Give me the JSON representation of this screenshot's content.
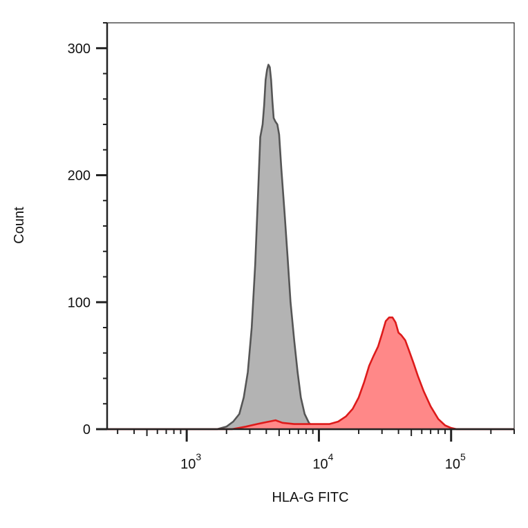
{
  "chart_data": {
    "type": "area",
    "title": "",
    "xlabel": "HLA-G FITC",
    "ylabel": "Count",
    "x_scale": "log",
    "xlim": [
      250,
      300000
    ],
    "ylim": [
      0,
      320
    ],
    "x_major_ticks": [
      {
        "value": 1000,
        "base": "10",
        "exp": "3"
      },
      {
        "value": 10000,
        "base": "10",
        "exp": "4"
      },
      {
        "value": 100000,
        "base": "10",
        "exp": "5"
      }
    ],
    "y_ticks": [
      {
        "value": 0,
        "label": "0"
      },
      {
        "value": 100,
        "label": "100"
      },
      {
        "value": 200,
        "label": "200"
      },
      {
        "value": 300,
        "label": "300"
      }
    ],
    "grid": false,
    "legend": "none",
    "series": [
      {
        "color": "#555555",
        "fill": "#b3b3b3",
        "points": [
          [
            250,
            0
          ],
          [
            1700,
            0
          ],
          [
            2000,
            2
          ],
          [
            2250,
            6
          ],
          [
            2500,
            12
          ],
          [
            2700,
            25
          ],
          [
            2900,
            45
          ],
          [
            3100,
            80
          ],
          [
            3300,
            130
          ],
          [
            3450,
            180
          ],
          [
            3600,
            230
          ],
          [
            3750,
            240
          ],
          [
            3850,
            255
          ],
          [
            3950,
            275
          ],
          [
            4050,
            283
          ],
          [
            4150,
            287
          ],
          [
            4250,
            285
          ],
          [
            4350,
            275
          ],
          [
            4450,
            258
          ],
          [
            4550,
            245
          ],
          [
            4700,
            242
          ],
          [
            4850,
            240
          ],
          [
            5000,
            232
          ],
          [
            5200,
            205
          ],
          [
            5500,
            170
          ],
          [
            5800,
            135
          ],
          [
            6100,
            100
          ],
          [
            6500,
            70
          ],
          [
            6900,
            45
          ],
          [
            7300,
            25
          ],
          [
            7800,
            12
          ],
          [
            8400,
            5
          ],
          [
            9200,
            1
          ],
          [
            10000,
            0
          ],
          [
            300000,
            0
          ]
        ]
      },
      {
        "color": "#dd1a1a",
        "fill": "#ff8888",
        "points": [
          [
            250,
            0
          ],
          [
            2200,
            0
          ],
          [
            2800,
            2
          ],
          [
            3400,
            4
          ],
          [
            4200,
            6
          ],
          [
            4700,
            7
          ],
          [
            5300,
            5
          ],
          [
            6500,
            4
          ],
          [
            9000,
            4
          ],
          [
            12000,
            4
          ],
          [
            14000,
            6
          ],
          [
            16000,
            10
          ],
          [
            18000,
            16
          ],
          [
            20000,
            25
          ],
          [
            22000,
            37
          ],
          [
            24000,
            50
          ],
          [
            26000,
            58
          ],
          [
            28000,
            65
          ],
          [
            30000,
            75
          ],
          [
            32000,
            85
          ],
          [
            34000,
            88
          ],
          [
            36000,
            88
          ],
          [
            38000,
            84
          ],
          [
            40000,
            76
          ],
          [
            42000,
            74
          ],
          [
            45000,
            70
          ],
          [
            48000,
            62
          ],
          [
            52000,
            52
          ],
          [
            56000,
            42
          ],
          [
            62000,
            30
          ],
          [
            70000,
            18
          ],
          [
            80000,
            8
          ],
          [
            90000,
            3
          ],
          [
            100000,
            1
          ],
          [
            110000,
            0
          ],
          [
            300000,
            0
          ]
        ]
      }
    ]
  }
}
